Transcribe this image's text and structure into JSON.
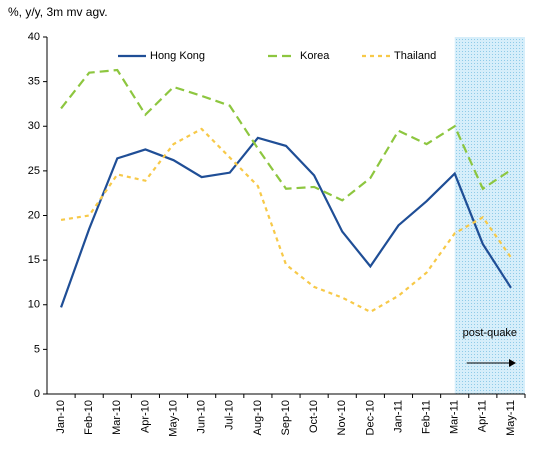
{
  "chart_data": {
    "type": "line",
    "subtitle": "%, y/y, 3m mv agv.",
    "categories": [
      "Jan-10",
      "Feb-10",
      "Mar-10",
      "Apr-10",
      "May-10",
      "Jun-10",
      "Jul-10",
      "Aug-10",
      "Sep-10",
      "Oct-10",
      "Nov-10",
      "Dec-10",
      "Jan-11",
      "Feb-11",
      "Mar-11",
      "Apr-11",
      "May-11"
    ],
    "series": [
      {
        "name": "Hong Kong",
        "color": "#1f4e96",
        "dash": "solid",
        "values": [
          9.7,
          18.5,
          26.4,
          27.4,
          26.2,
          24.3,
          24.8,
          28.7,
          27.8,
          24.5,
          18.2,
          14.3,
          18.9,
          21.6,
          24.7,
          16.8,
          11.9
        ]
      },
      {
        "name": "Korea",
        "color": "#8dc63f",
        "dash": "dashed",
        "values": [
          32.0,
          36.0,
          36.3,
          31.3,
          34.4,
          33.4,
          32.3,
          27.5,
          23.0,
          23.2,
          21.7,
          24.2,
          29.5,
          28.0,
          30.0,
          23.0,
          25.1
        ]
      },
      {
        "name": "Thailand",
        "color": "#f7c948",
        "dash": "dotted",
        "values": [
          19.5,
          20.0,
          24.6,
          23.9,
          28.0,
          29.7,
          26.5,
          23.3,
          14.5,
          12.0,
          10.8,
          9.2,
          11.0,
          13.6,
          18.0,
          19.8,
          15.3
        ]
      }
    ],
    "ylim": [
      0,
      40
    ],
    "yticks": [
      0,
      5,
      10,
      15,
      20,
      25,
      30,
      35,
      40
    ],
    "highlight": {
      "start": "Mar-11",
      "label": "post-quake"
    },
    "legend": "top"
  }
}
